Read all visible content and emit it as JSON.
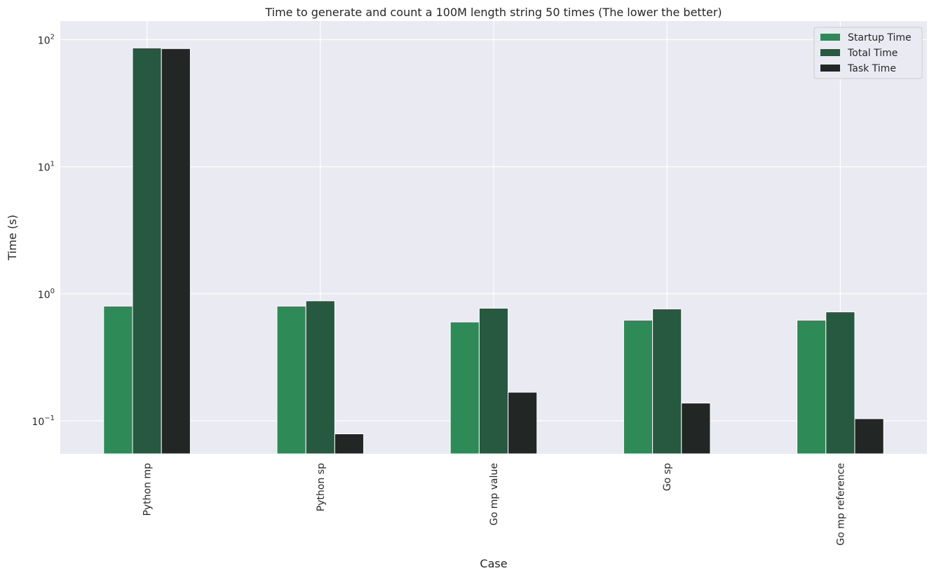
{
  "chart_data": {
    "type": "bar",
    "title": "Time to generate and count a 100M length string 50 times (The lower the better)",
    "xlabel": "Case",
    "ylabel": "Time (s)",
    "yscale": "log",
    "ylim": [
      0.055,
      140
    ],
    "yticks": [
      {
        "value": 0.1,
        "base": "10",
        "exp": "−1"
      },
      {
        "value": 1,
        "base": "10",
        "exp": "0"
      },
      {
        "value": 10,
        "base": "10",
        "exp": "1"
      },
      {
        "value": 100,
        "base": "10",
        "exp": "2"
      }
    ],
    "categories": [
      "Python mp",
      "Python sp",
      "Go mp value",
      "Go sp",
      "Go mp reference"
    ],
    "series": [
      {
        "name": "Startup Time",
        "color": "#2e8b57",
        "values": [
          0.8,
          0.8,
          0.6,
          0.62,
          0.62
        ]
      },
      {
        "name": "Total Time",
        "color": "#275940",
        "values": [
          86,
          0.88,
          0.77,
          0.76,
          0.72
        ]
      },
      {
        "name": "Task Time",
        "color": "#222624",
        "values": [
          85,
          0.079,
          0.168,
          0.138,
          0.104
        ]
      }
    ],
    "grid": true,
    "legend_position": "top-right",
    "background": "#eaeaf2",
    "grid_color": "#ffffff"
  }
}
